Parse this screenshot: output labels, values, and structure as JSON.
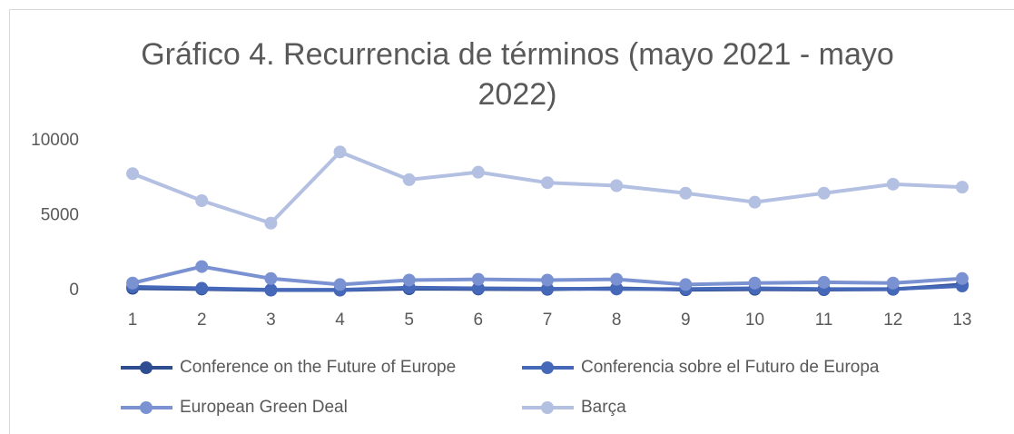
{
  "chart_data": {
    "type": "line",
    "title": "Gráfico 4. Recurrencia de términos (mayo 2021 - mayo 2022)",
    "categories": [
      "1",
      "2",
      "3",
      "4",
      "5",
      "6",
      "7",
      "8",
      "9",
      "10",
      "11",
      "12",
      "13"
    ],
    "series": [
      {
        "name": "Conference on the Future of Europe",
        "color": "#2f4d91",
        "values": [
          150,
          100,
          30,
          30,
          120,
          100,
          80,
          150,
          50,
          80,
          60,
          80,
          400
        ]
      },
      {
        "name": "Conferencia sobre el Futuro de Europa",
        "color": "#4668b8",
        "values": [
          250,
          150,
          50,
          50,
          200,
          150,
          120,
          100,
          100,
          150,
          100,
          100,
          300
        ]
      },
      {
        "name": "European Green Deal",
        "color": "#7a92d1",
        "values": [
          500,
          1600,
          800,
          400,
          700,
          750,
          700,
          750,
          400,
          500,
          550,
          500,
          800
        ]
      },
      {
        "name": "Barça",
        "color": "#b3c0e2",
        "values": [
          7800,
          6000,
          4500,
          9250,
          7400,
          7900,
          7200,
          7000,
          6500,
          5900,
          6500,
          7100,
          6900
        ]
      }
    ],
    "ylim": [
      0,
      10000
    ],
    "yticks": [
      0,
      5000,
      10000
    ],
    "grid": false
  }
}
